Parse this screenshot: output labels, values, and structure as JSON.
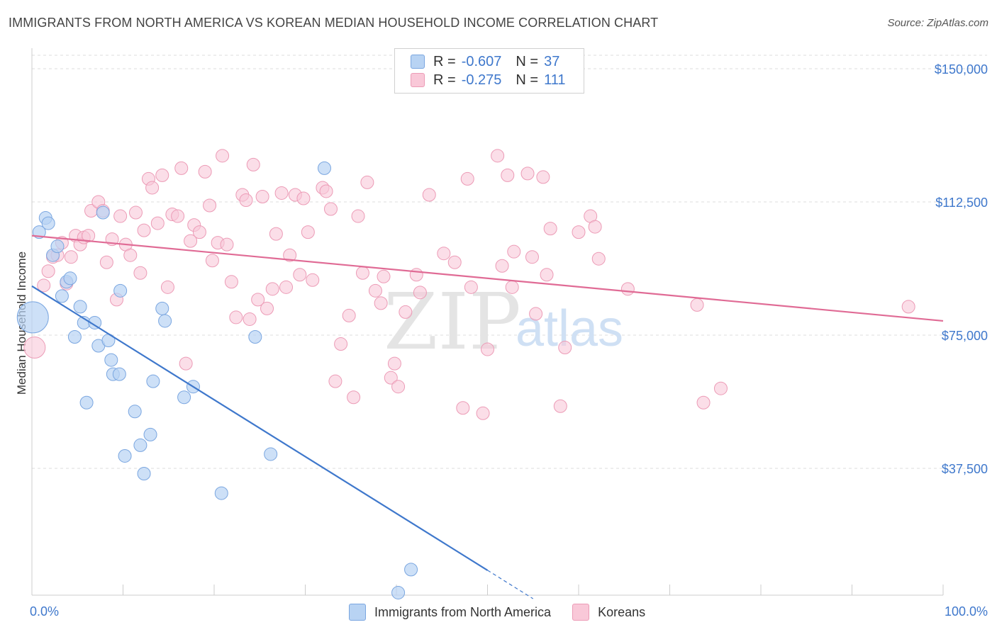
{
  "title": "IMMIGRANTS FROM NORTH AMERICA VS KOREAN MEDIAN HOUSEHOLD INCOME CORRELATION CHART",
  "source": "Source: ZipAtlas.com",
  "watermark": {
    "zip": "ZIP",
    "atlas": "atlas"
  },
  "legend": {
    "r_label": "R =",
    "n_label": "N =",
    "rows": [
      {
        "r": "-0.607",
        "n": "37"
      },
      {
        "r": "-0.275",
        "n": "111"
      }
    ]
  },
  "colors": {
    "blue": "#3f78cc",
    "blue_fill": "#b8d3f3",
    "pink": "#e06b95",
    "pink_fill": "#f9c8d8"
  },
  "chart_data": {
    "type": "scatter",
    "title": "IMMIGRANTS FROM NORTH AMERICA VS KOREAN MEDIAN HOUSEHOLD INCOME CORRELATION CHART",
    "xlabel": "",
    "ylabel": "Median Household Income",
    "xlim": [
      0,
      100
    ],
    "ylim": [
      0,
      155000
    ],
    "x_tick_labels": [
      "0.0%",
      "100.0%"
    ],
    "y_ticks": [
      37500,
      75000,
      112500,
      150000
    ],
    "y_tick_labels": [
      "$37,500",
      "$75,000",
      "$112,500",
      "$150,000"
    ],
    "legend_position": "top-center",
    "series": [
      {
        "name": "Immigrants from North America",
        "color": "#3f78cc",
        "r": -0.607,
        "n": 37,
        "trend": {
          "x0": 0,
          "y0": 88800,
          "x1": 50,
          "y1": 8800,
          "dash_x1": 55,
          "dash_y1": 800
        },
        "points": [
          {
            "x": 0.1,
            "y": 80000,
            "big": true
          },
          {
            "x": 0.8,
            "y": 104000
          },
          {
            "x": 1.5,
            "y": 108000
          },
          {
            "x": 1.8,
            "y": 106500
          },
          {
            "x": 2.3,
            "y": 97500
          },
          {
            "x": 2.8,
            "y": 100000
          },
          {
            "x": 3.3,
            "y": 86000
          },
          {
            "x": 3.8,
            "y": 90000
          },
          {
            "x": 4.2,
            "y": 91000
          },
          {
            "x": 4.7,
            "y": 74500
          },
          {
            "x": 5.3,
            "y": 83000
          },
          {
            "x": 5.7,
            "y": 78500
          },
          {
            "x": 6.0,
            "y": 56000
          },
          {
            "x": 6.9,
            "y": 78500
          },
          {
            "x": 7.3,
            "y": 72000
          },
          {
            "x": 7.8,
            "y": 109500
          },
          {
            "x": 8.4,
            "y": 73500
          },
          {
            "x": 8.7,
            "y": 68000
          },
          {
            "x": 8.9,
            "y": 64000
          },
          {
            "x": 9.6,
            "y": 64000
          },
          {
            "x": 9.7,
            "y": 87500
          },
          {
            "x": 10.2,
            "y": 41000
          },
          {
            "x": 11.3,
            "y": 53500
          },
          {
            "x": 11.9,
            "y": 44000
          },
          {
            "x": 12.3,
            "y": 36000
          },
          {
            "x": 13.0,
            "y": 47000
          },
          {
            "x": 13.3,
            "y": 62000
          },
          {
            "x": 14.3,
            "y": 82500
          },
          {
            "x": 14.6,
            "y": 79000
          },
          {
            "x": 16.7,
            "y": 57500
          },
          {
            "x": 17.7,
            "y": 60500
          },
          {
            "x": 20.8,
            "y": 30500
          },
          {
            "x": 24.5,
            "y": 74500
          },
          {
            "x": 26.2,
            "y": 41500
          },
          {
            "x": 32.1,
            "y": 122000
          },
          {
            "x": 41.6,
            "y": 9000
          },
          {
            "x": 40.2,
            "y": 2500
          }
        ]
      },
      {
        "name": "Koreans",
        "color": "#e06b95",
        "r": -0.275,
        "n": 111,
        "trend": {
          "x0": 0,
          "y0": 103000,
          "x1": 100,
          "y1": 79000
        },
        "points": [
          {
            "x": 0.3,
            "y": 71500,
            "big": true
          },
          {
            "x": 1.3,
            "y": 89000
          },
          {
            "x": 1.8,
            "y": 93000
          },
          {
            "x": 2.3,
            "y": 97000
          },
          {
            "x": 2.8,
            "y": 97500
          },
          {
            "x": 3.3,
            "y": 101000
          },
          {
            "x": 3.8,
            "y": 89500
          },
          {
            "x": 4.3,
            "y": 97000
          },
          {
            "x": 4.8,
            "y": 103000
          },
          {
            "x": 5.3,
            "y": 100500
          },
          {
            "x": 5.7,
            "y": 102500
          },
          {
            "x": 6.2,
            "y": 103000
          },
          {
            "x": 6.5,
            "y": 110000
          },
          {
            "x": 7.3,
            "y": 112500
          },
          {
            "x": 7.8,
            "y": 110000
          },
          {
            "x": 8.2,
            "y": 95500
          },
          {
            "x": 8.8,
            "y": 102000
          },
          {
            "x": 9.3,
            "y": 85000
          },
          {
            "x": 9.7,
            "y": 108500
          },
          {
            "x": 10.3,
            "y": 100500
          },
          {
            "x": 10.8,
            "y": 97500
          },
          {
            "x": 11.4,
            "y": 109500
          },
          {
            "x": 11.9,
            "y": 92500
          },
          {
            "x": 12.3,
            "y": 104500
          },
          {
            "x": 12.8,
            "y": 119000
          },
          {
            "x": 13.2,
            "y": 116500
          },
          {
            "x": 13.8,
            "y": 106500
          },
          {
            "x": 14.3,
            "y": 120000
          },
          {
            "x": 14.9,
            "y": 88500
          },
          {
            "x": 15.4,
            "y": 109000
          },
          {
            "x": 16.0,
            "y": 108500
          },
          {
            "x": 16.4,
            "y": 122000
          },
          {
            "x": 16.9,
            "y": 67000
          },
          {
            "x": 17.4,
            "y": 101500
          },
          {
            "x": 17.8,
            "y": 106000
          },
          {
            "x": 18.4,
            "y": 104000
          },
          {
            "x": 19.0,
            "y": 121000
          },
          {
            "x": 19.5,
            "y": 111500
          },
          {
            "x": 19.8,
            "y": 96000
          },
          {
            "x": 20.4,
            "y": 101000
          },
          {
            "x": 20.9,
            "y": 125500
          },
          {
            "x": 21.4,
            "y": 100500
          },
          {
            "x": 21.9,
            "y": 90000
          },
          {
            "x": 22.4,
            "y": 80000
          },
          {
            "x": 23.1,
            "y": 114500
          },
          {
            "x": 23.5,
            "y": 113000
          },
          {
            "x": 23.9,
            "y": 79500
          },
          {
            "x": 24.3,
            "y": 123000
          },
          {
            "x": 24.8,
            "y": 85000
          },
          {
            "x": 25.3,
            "y": 114000
          },
          {
            "x": 25.8,
            "y": 82500
          },
          {
            "x": 26.4,
            "y": 88000
          },
          {
            "x": 26.8,
            "y": 103500
          },
          {
            "x": 27.4,
            "y": 115000
          },
          {
            "x": 27.9,
            "y": 88500
          },
          {
            "x": 28.3,
            "y": 97500
          },
          {
            "x": 28.9,
            "y": 114500
          },
          {
            "x": 29.4,
            "y": 92000
          },
          {
            "x": 29.8,
            "y": 113500
          },
          {
            "x": 30.3,
            "y": 104000
          },
          {
            "x": 30.8,
            "y": 90500
          },
          {
            "x": 31.9,
            "y": 116500
          },
          {
            "x": 32.3,
            "y": 115500
          },
          {
            "x": 32.8,
            "y": 110500
          },
          {
            "x": 33.3,
            "y": 62000
          },
          {
            "x": 33.9,
            "y": 72500
          },
          {
            "x": 34.8,
            "y": 80500
          },
          {
            "x": 35.3,
            "y": 57500
          },
          {
            "x": 35.8,
            "y": 108500
          },
          {
            "x": 36.3,
            "y": 92500
          },
          {
            "x": 36.8,
            "y": 118000
          },
          {
            "x": 37.7,
            "y": 87500
          },
          {
            "x": 38.3,
            "y": 84000
          },
          {
            "x": 38.6,
            "y": 91500
          },
          {
            "x": 39.4,
            "y": 63000
          },
          {
            "x": 39.8,
            "y": 67000
          },
          {
            "x": 40.2,
            "y": 60500
          },
          {
            "x": 41.0,
            "y": 81500
          },
          {
            "x": 42.2,
            "y": 92000
          },
          {
            "x": 42.6,
            "y": 87000
          },
          {
            "x": 43.6,
            "y": 114500
          },
          {
            "x": 45.2,
            "y": 98000
          },
          {
            "x": 46.4,
            "y": 95500
          },
          {
            "x": 47.3,
            "y": 54500
          },
          {
            "x": 47.8,
            "y": 119000
          },
          {
            "x": 48.2,
            "y": 88500
          },
          {
            "x": 49.5,
            "y": 53000
          },
          {
            "x": 50.0,
            "y": 71000
          },
          {
            "x": 51.1,
            "y": 125500
          },
          {
            "x": 51.6,
            "y": 94500
          },
          {
            "x": 52.2,
            "y": 120000
          },
          {
            "x": 52.7,
            "y": 88500
          },
          {
            "x": 52.9,
            "y": 98500
          },
          {
            "x": 54.4,
            "y": 120500
          },
          {
            "x": 54.9,
            "y": 97000
          },
          {
            "x": 55.3,
            "y": 81000
          },
          {
            "x": 56.1,
            "y": 119500
          },
          {
            "x": 56.5,
            "y": 92000
          },
          {
            "x": 56.9,
            "y": 105000
          },
          {
            "x": 58.0,
            "y": 55000
          },
          {
            "x": 58.5,
            "y": 71500
          },
          {
            "x": 60.0,
            "y": 104000
          },
          {
            "x": 61.3,
            "y": 108500
          },
          {
            "x": 61.8,
            "y": 105500
          },
          {
            "x": 62.2,
            "y": 96500
          },
          {
            "x": 65.4,
            "y": 88000
          },
          {
            "x": 73.0,
            "y": 83500
          },
          {
            "x": 73.7,
            "y": 56000
          },
          {
            "x": 75.6,
            "y": 60000
          },
          {
            "x": 96.2,
            "y": 83000
          }
        ]
      }
    ]
  }
}
